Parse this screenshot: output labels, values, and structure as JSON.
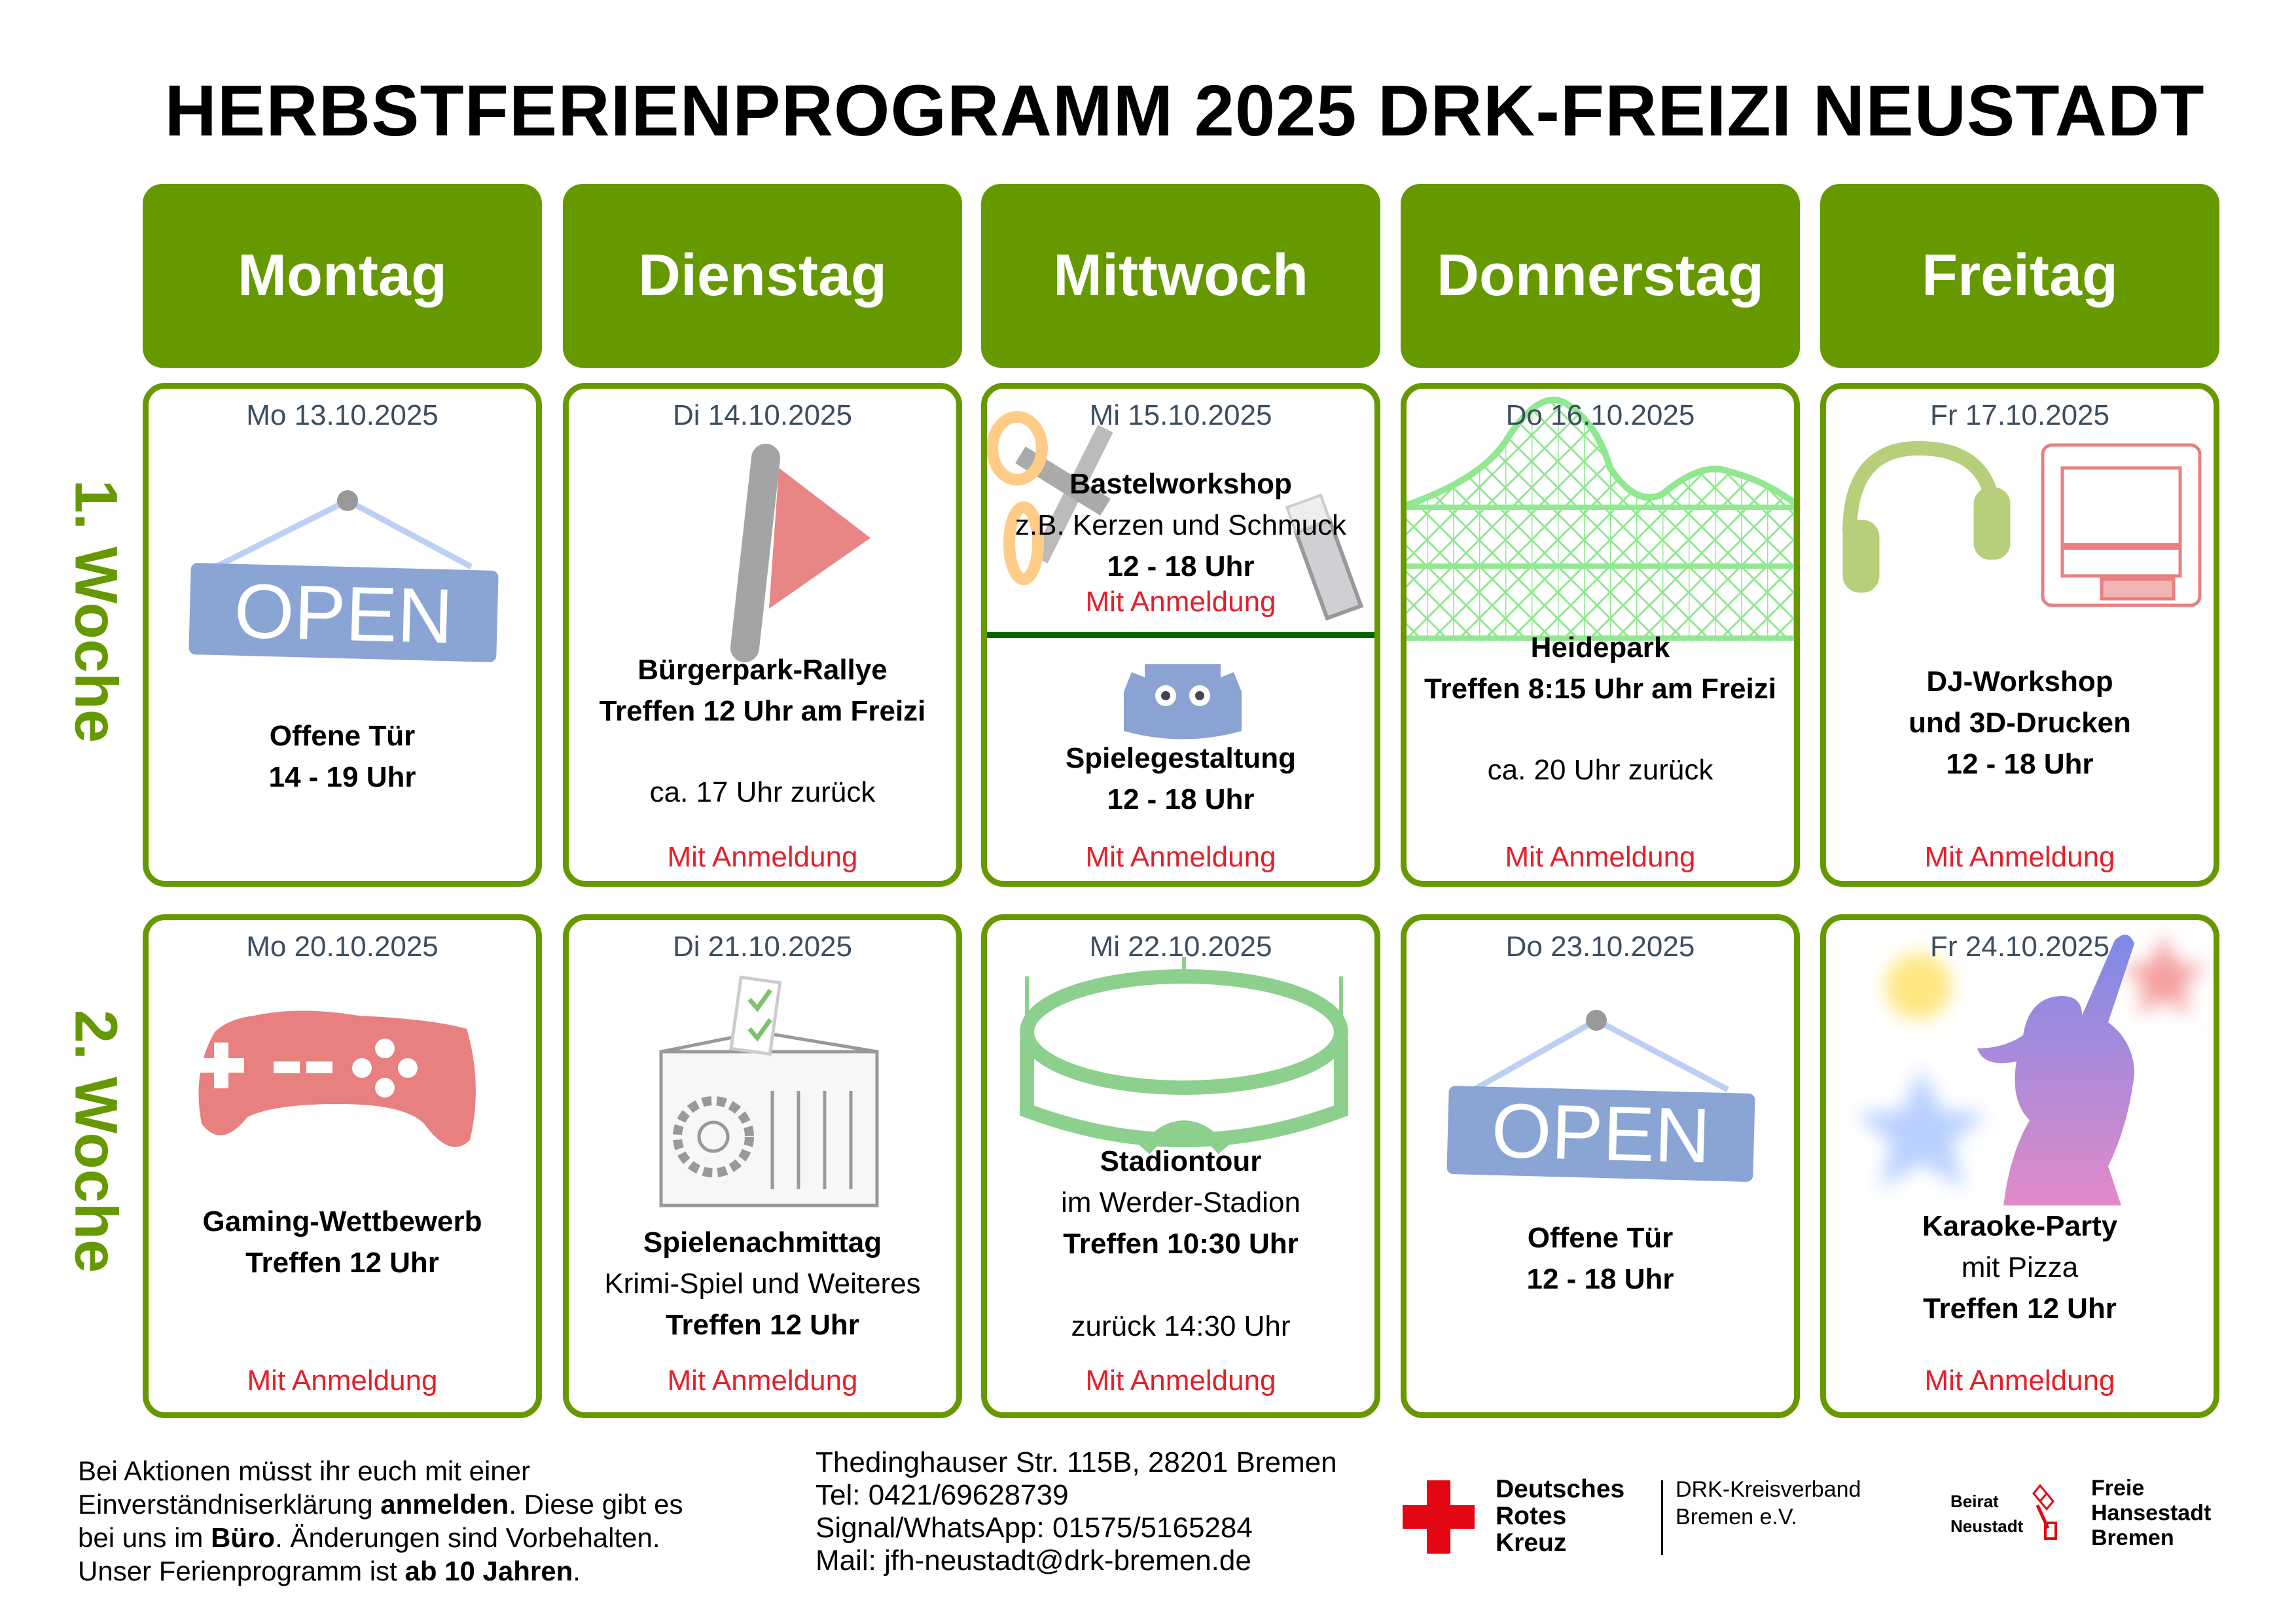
{
  "title": "HERBSTFERIENPROGRAMM 2025 DRK-FREIZI NEUSTADT",
  "colors": {
    "green": "#669900",
    "red_text": "#e3202a",
    "date_text": "#3c4d60",
    "divider": "#006400",
    "cross_red": "#e30613"
  },
  "day_headers": [
    "Montag",
    "Dienstag",
    "Mittwoch",
    "Donnerstag",
    "Freitag"
  ],
  "open_sign_text": "OPEN",
  "weeks": [
    {
      "label": "1. Woche",
      "days": [
        {
          "date": "Mo 13.10.2025",
          "icon": "open-sign",
          "lines": [
            {
              "text": "Offene Tür",
              "bold": true
            },
            {
              "text": "14 - 19 Uhr",
              "bold": true
            }
          ],
          "note": ""
        },
        {
          "date": "Di 14.10.2025",
          "icon": "flag",
          "lines": [
            {
              "text": "Bürgerpark-Rallye",
              "bold": true
            },
            {
              "text": "Treffen 12 Uhr am Freizi",
              "bold": true
            },
            {
              "text": "ca. 17 Uhr zurück",
              "bold": false
            }
          ],
          "note": "Mit Anmeldung"
        },
        {
          "date": "Mi 15.10.2025",
          "icon": "scissors-glue-gamepad-robot",
          "lines": [
            {
              "text": "Bastelworkshop",
              "bold": true
            },
            {
              "text": "z.B. Kerzen und Schmuck",
              "bold": false
            },
            {
              "text": "12 - 18 Uhr",
              "bold": true
            },
            {
              "text": "Mit Anmeldung",
              "bold": false,
              "note": true
            },
            {
              "text": "Spielegestaltung",
              "bold": true
            },
            {
              "text": "12 - 18 Uhr",
              "bold": true
            }
          ],
          "note": "Mit Anmeldung"
        },
        {
          "date": "Do 16.10.2025",
          "icon": "roller-coaster",
          "lines": [
            {
              "text": "Heidepark",
              "bold": true
            },
            {
              "text": "Treffen 8:15 Uhr am Freizi",
              "bold": true
            },
            {
              "text": "ca. 20 Uhr zurück",
              "bold": false
            }
          ],
          "note": "Mit Anmeldung"
        },
        {
          "date": "Fr 17.10.2025",
          "icon": "headphones-3d-printer",
          "lines": [
            {
              "text": "DJ-Workshop",
              "bold": true
            },
            {
              "text": "und 3D-Drucken",
              "bold": true
            },
            {
              "text": "12 - 18 Uhr",
              "bold": true
            }
          ],
          "note": "Mit Anmeldung"
        }
      ]
    },
    {
      "label": "2. Woche",
      "days": [
        {
          "date": "Mo 20.10.2025",
          "icon": "gamepad",
          "lines": [
            {
              "text": "Gaming-Wettbewerb",
              "bold": true
            },
            {
              "text": "Treffen 12 Uhr",
              "bold": true
            }
          ],
          "note": "Mit Anmeldung"
        },
        {
          "date": "Di 21.10.2025",
          "icon": "ballot-box-building",
          "lines": [
            {
              "text": "Spielenachmittag",
              "bold": true
            },
            {
              "text": "Krimi-Spiel und Weiteres",
              "bold": false
            },
            {
              "text": "Treffen 12 Uhr",
              "bold": true
            }
          ],
          "note": "Mit Anmeldung"
        },
        {
          "date": "Mi 22.10.2025",
          "icon": "stadium",
          "lines": [
            {
              "text": "Stadiontour",
              "bold": true
            },
            {
              "text": "im Werder-Stadion",
              "bold": false
            },
            {
              "text": "Treffen 10:30 Uhr",
              "bold": true
            },
            {
              "text": "zurück 14:30 Uhr",
              "bold": false
            }
          ],
          "note": "Mit Anmeldung"
        },
        {
          "date": "Do 23.10.2025",
          "icon": "open-sign",
          "lines": [
            {
              "text": "Offene Tür",
              "bold": true
            },
            {
              "text": "12 - 18 Uhr",
              "bold": true
            }
          ],
          "note": ""
        },
        {
          "date": "Fr 24.10.2025",
          "icon": "karaoke-singer-stars",
          "lines": [
            {
              "text": "Karaoke-Party",
              "bold": true
            },
            {
              "text": "mit Pizza",
              "bold": false
            },
            {
              "text": "Treffen 12 Uhr",
              "bold": true
            }
          ],
          "note": "Mit Anmeldung"
        }
      ]
    }
  ],
  "footer": {
    "info_lines": [
      [
        {
          "text": "Bei Aktionen müsst ihr euch mit einer",
          "bold": false
        }
      ],
      [
        {
          "text": "Einverständniserklärung ",
          "bold": false
        },
        {
          "text": "anmelden",
          "bold": true
        },
        {
          "text": ". Diese gibt es",
          "bold": false
        }
      ],
      [
        {
          "text": "bei uns im ",
          "bold": false
        },
        {
          "text": "Büro",
          "bold": true
        },
        {
          "text": ". Änderungen sind Vorbehalten.",
          "bold": false
        }
      ],
      [
        {
          "text": "Unser Ferienprogramm ist ",
          "bold": false
        },
        {
          "text": "ab 10 Jahren",
          "bold": true
        },
        {
          "text": ".",
          "bold": false
        }
      ]
    ],
    "contact_lines": [
      "Thedinghauser Str. 115B, 28201 Bremen",
      "Tel: 0421/69628739",
      "Signal/WhatsApp: 01575/5165284",
      "Mail: jfh-neustadt@drk-bremen.de"
    ],
    "drk_logo": {
      "name_lines": [
        "Deutsches",
        "Rotes",
        "Kreuz"
      ],
      "org_lines": [
        "DRK-Kreisverband",
        "Bremen e.V."
      ]
    },
    "bremen_logo": {
      "beirat_lines": [
        "Beirat",
        "Neustadt"
      ],
      "name_lines": [
        "Freie",
        "Hansestadt",
        "Bremen"
      ]
    }
  }
}
